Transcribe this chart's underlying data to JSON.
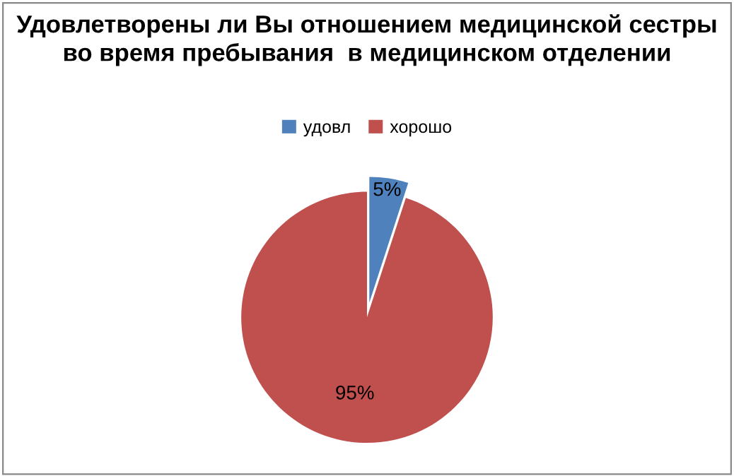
{
  "chart_data": {
    "type": "pie",
    "title": "Удовлетворены ли Вы отношением медицинской сестры во время пребывания  в медицинском отделении",
    "categories": [
      "удовл",
      "хорошо"
    ],
    "values": [
      5,
      95
    ],
    "colors": [
      "#4f81bd",
      "#c0504d"
    ],
    "value_labels": [
      "5%",
      "95%"
    ],
    "legend": "top"
  }
}
